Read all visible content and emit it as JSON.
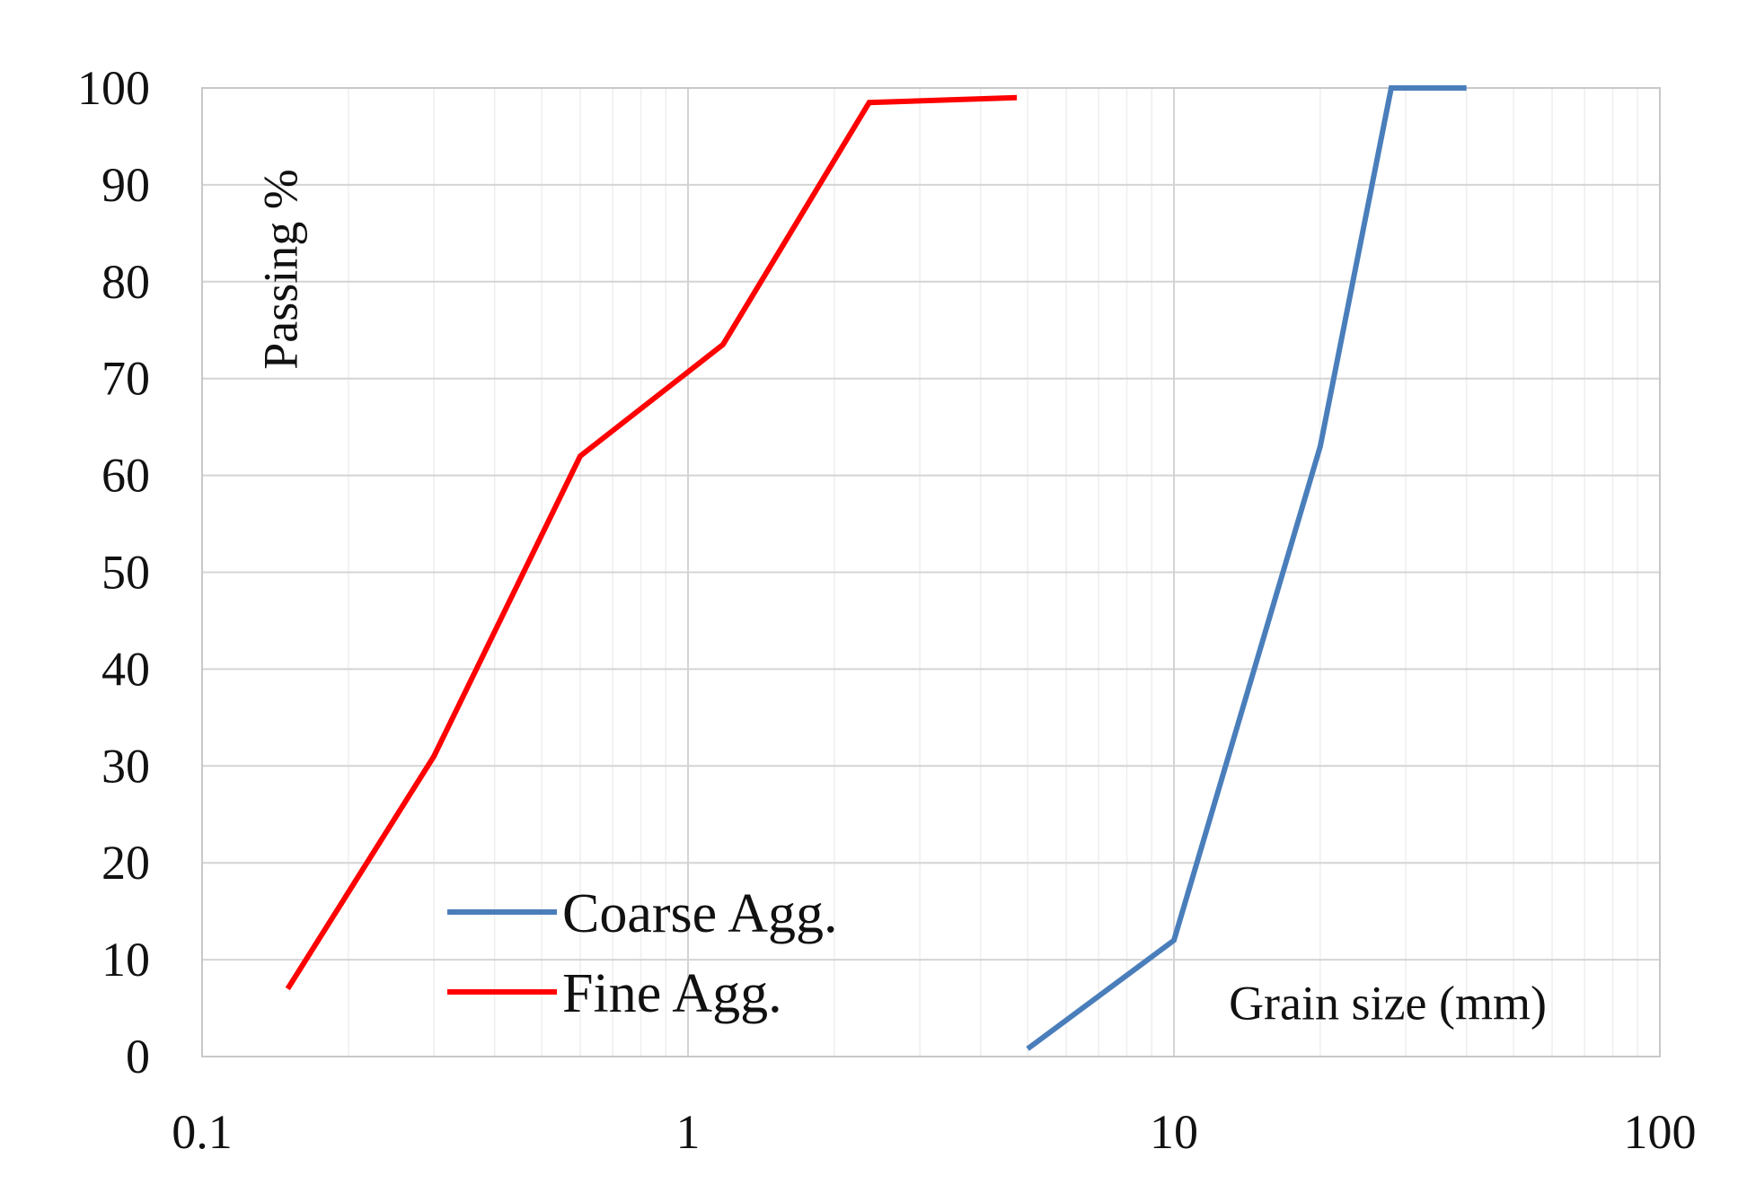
{
  "chart_data": {
    "type": "line",
    "title": "",
    "xlabel": "Grain size (mm)",
    "ylabel": "Passing %",
    "x_scale": "log",
    "xlim": [
      0.1,
      100
    ],
    "ylim": [
      0,
      100
    ],
    "x_ticks": [
      "0.1",
      "1",
      "10",
      "100"
    ],
    "y_ticks": [
      "0",
      "10",
      "20",
      "30",
      "40",
      "50",
      "60",
      "70",
      "80",
      "90",
      "100"
    ],
    "grid": "on",
    "legend_position": "bottom-left",
    "series": [
      {
        "name": "Coarse Agg.",
        "color": "#4a7ebb",
        "points": [
          {
            "x": 5,
            "y": 0.8
          },
          {
            "x": 10,
            "y": 12
          },
          {
            "x": 20,
            "y": 63
          },
          {
            "x": 28,
            "y": 100
          },
          {
            "x": 40,
            "y": 100
          }
        ]
      },
      {
        "name": "Fine Agg.",
        "color": "#ff0000",
        "points": [
          {
            "x": 0.15,
            "y": 7
          },
          {
            "x": 0.3,
            "y": 31
          },
          {
            "x": 0.6,
            "y": 62
          },
          {
            "x": 1.18,
            "y": 73.5
          },
          {
            "x": 2.36,
            "y": 98.5
          },
          {
            "x": 4.75,
            "y": 99
          }
        ]
      }
    ]
  }
}
